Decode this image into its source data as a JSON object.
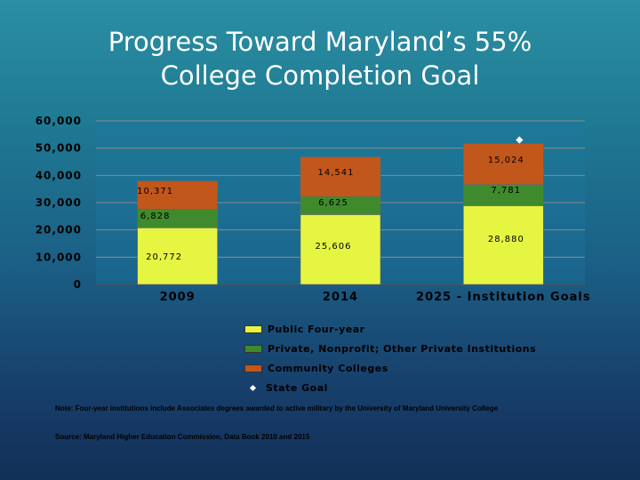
{
  "slide": {
    "title_line1": "Progress Toward Maryland’s 55%",
    "title_line2": "College Completion Goal",
    "note": "Note: Four-year institutions include Associates degrees awarded to active military by the University of Maryland University College",
    "source": "Source: Maryland Higher Education Commission, Data Book 2010 and 2015"
  },
  "colors": {
    "public_four_year": "#e6f542",
    "private_nonprofit": "#3f8a2c",
    "community_colleges": "#c2571b",
    "state_goal": "#ffffff"
  },
  "chart_data": {
    "type": "bar",
    "stacked": true,
    "categories": [
      "2009",
      "2014",
      "2025 - Institution Goals"
    ],
    "y_ticks": [
      "60,000",
      "50,000",
      "40,000",
      "30,000",
      "20,000",
      "10,000",
      "0"
    ],
    "ylim": [
      0,
      60000
    ],
    "grid": true,
    "legend_position": "bottom",
    "series": [
      {
        "name": "Public Four-year",
        "values": [
          20772,
          25606,
          28880
        ],
        "labels": [
          "20,772",
          "25,606",
          "28,880"
        ]
      },
      {
        "name": "Private, Nonprofit; Other Private Institutions",
        "values": [
          6828,
          6625,
          7781
        ],
        "labels": [
          "6,828",
          "6,625",
          "7,781"
        ]
      },
      {
        "name": "Community Colleges",
        "values": [
          10371,
          14541,
          15024
        ],
        "labels": [
          "10,371",
          "14,541",
          "15,024"
        ]
      }
    ],
    "markers": [
      {
        "name": "State Goal",
        "category": "2025 - Institution Goals",
        "value": 53000
      }
    ]
  }
}
